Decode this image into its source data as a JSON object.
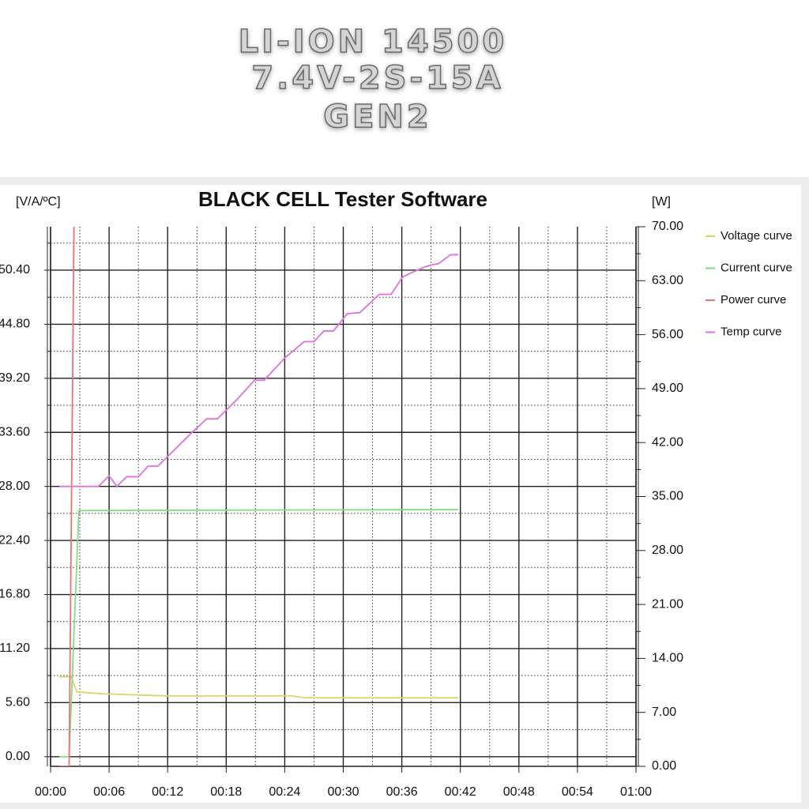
{
  "header": {
    "lines": [
      "LI-ION 14500",
      "7.4V-2S-15A",
      "GEN2"
    ]
  },
  "chart_data": {
    "type": "line",
    "title": "BLACK CELL Tester Software",
    "y_label": "[V/A/ºC]",
    "y2_label": "[W]",
    "xlim": [
      0,
      60
    ],
    "xticks": [
      {
        "value": 0,
        "label": "00:00"
      },
      {
        "value": 6,
        "label": "00:06"
      },
      {
        "value": 12,
        "label": "00:12"
      },
      {
        "value": 18,
        "label": "00:18"
      },
      {
        "value": 24,
        "label": "00:24"
      },
      {
        "value": 30,
        "label": "00:30"
      },
      {
        "value": 36,
        "label": "00:36"
      },
      {
        "value": 42,
        "label": "00:42"
      },
      {
        "value": 48,
        "label": "00:48"
      },
      {
        "value": 54,
        "label": "00:54"
      },
      {
        "value": 60,
        "label": "01:00"
      }
    ],
    "ylim": [
      -1,
      54.9
    ],
    "yticks": [
      {
        "value": 0,
        "label": "0.00"
      },
      {
        "value": 5.6,
        "label": "5.60"
      },
      {
        "value": 11.2,
        "label": "11.20"
      },
      {
        "value": 16.8,
        "label": "16.80"
      },
      {
        "value": 22.4,
        "label": "22.40"
      },
      {
        "value": 28,
        "label": "28.00"
      },
      {
        "value": 33.6,
        "label": "33.60"
      },
      {
        "value": 39.2,
        "label": "39.20"
      },
      {
        "value": 44.8,
        "label": "44.80"
      },
      {
        "value": 50.4,
        "label": "50.40"
      }
    ],
    "y2lim": [
      0,
      70
    ],
    "y2ticks": [
      {
        "value": 0,
        "label": "0.00"
      },
      {
        "value": 7,
        "label": "7.00"
      },
      {
        "value": 14,
        "label": "14.00"
      },
      {
        "value": 21,
        "label": "21.00"
      },
      {
        "value": 28,
        "label": "28.00"
      },
      {
        "value": 35,
        "label": "35.00"
      },
      {
        "value": 42,
        "label": "42.00"
      },
      {
        "value": 49,
        "label": "49.00"
      },
      {
        "value": 56,
        "label": "56.00"
      },
      {
        "value": 63,
        "label": "63.00"
      },
      {
        "value": 70,
        "label": "70.00"
      }
    ],
    "grid": true,
    "legend": "right",
    "series": [
      {
        "name": "Voltage curve",
        "color": "#d8d86a",
        "x": [
          0.9,
          2.1,
          2.7,
          5.7,
          11.8,
          24.8,
          26,
          41.8
        ],
        "values": [
          8.26,
          8.3,
          6.7,
          6.5,
          6.3,
          6.3,
          6.1,
          6.1
        ]
      },
      {
        "name": "Current curve",
        "color": "#7ee07e",
        "x": [
          0.9,
          1.9,
          2.9,
          41.8
        ],
        "values": [
          0,
          0,
          25.5,
          25.6
        ]
      },
      {
        "name": "Power curve",
        "color": "#f07070",
        "axis": "y2",
        "x": [
          0.9,
          1.9,
          2.4
        ],
        "values": [
          0,
          0,
          70
        ]
      },
      {
        "name": "Temp curve",
        "color": "#e070e0",
        "x": [
          0.9,
          4.9,
          6.0,
          6.8,
          7.8,
          9.0,
          10.0,
          11.0,
          12.2,
          14.3,
          16.0,
          17.1,
          19.1,
          20.9,
          21.9,
          24.0,
          26.0,
          27.0,
          28.0,
          29.0,
          30.4,
          31.7,
          33.7,
          34.9,
          36.1,
          36.9,
          38.5,
          39.8,
          41.0,
          41.8
        ],
        "values": [
          28.0,
          28.0,
          29.1,
          28.0,
          29.0,
          29.0,
          30.1,
          30.1,
          31.3,
          33.4,
          35.0,
          35.0,
          37.0,
          39.0,
          39.0,
          41.3,
          43.0,
          43.0,
          44.1,
          44.1,
          45.9,
          46.0,
          47.9,
          47.9,
          49.7,
          50.1,
          50.8,
          51.1,
          52.0,
          52.0
        ]
      }
    ]
  }
}
